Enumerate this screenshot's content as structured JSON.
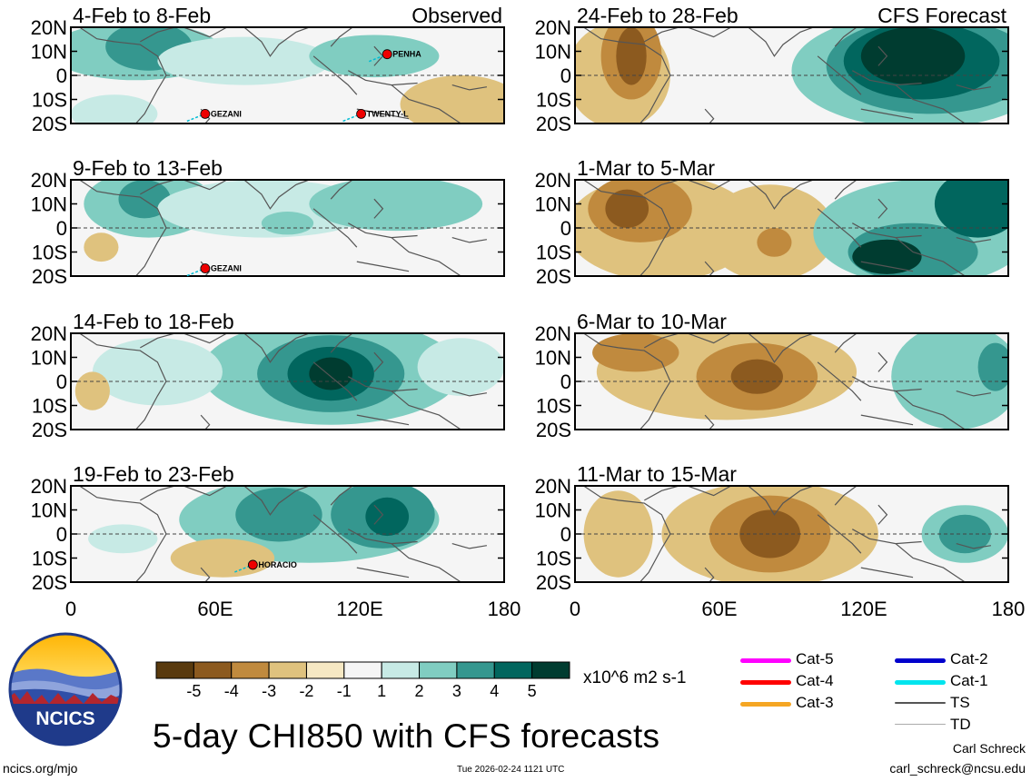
{
  "chart_data": {
    "type": "heatmap",
    "title": "5-day CHI850 with CFS forecasts",
    "units": "x10^6 m2 s-1",
    "variable": "CHI850",
    "x_axis": {
      "range": [
        0,
        180
      ],
      "ticks": [
        "0",
        "60E",
        "120E",
        "180"
      ]
    },
    "y_axis": {
      "range": [
        -20,
        20
      ],
      "ticks": [
        "20N",
        "10N",
        "0",
        "10S",
        "20S"
      ]
    },
    "colorbar": {
      "ticks": [
        "-5",
        "-4",
        "-3",
        "-2",
        "-1",
        "1",
        "2",
        "3",
        "4",
        "5"
      ],
      "colors": [
        "#593a0e",
        "#8c5a1f",
        "#c08a3e",
        "#dfc27e",
        "#f6e8c3",
        "#f5f5f5",
        "#c7eae5",
        "#80cdc1",
        "#35978f",
        "#01665e",
        "#003c30"
      ]
    },
    "panels": [
      {
        "id": "p1",
        "period": "4-Feb to 8-Feb",
        "source": "Observed",
        "storms": [
          "PENHA",
          "GEZANI",
          "TWENTY-L"
        ]
      },
      {
        "id": "p2",
        "period": "9-Feb to 13-Feb",
        "source": "",
        "storms": [
          "GEZANI"
        ]
      },
      {
        "id": "p3",
        "period": "14-Feb to 18-Feb",
        "source": "",
        "storms": []
      },
      {
        "id": "p4",
        "period": "19-Feb to 23-Feb",
        "source": "",
        "storms": [
          "HORACIO"
        ]
      },
      {
        "id": "p5",
        "period": "24-Feb to 28-Feb",
        "source": "CFS Forecast",
        "storms": []
      },
      {
        "id": "p6",
        "period": "1-Mar to 5-Mar",
        "source": "",
        "storms": []
      },
      {
        "id": "p7",
        "period": "6-Mar to 10-Mar",
        "source": "",
        "storms": []
      },
      {
        "id": "p8",
        "period": "11-Mar to 15-Mar",
        "source": "",
        "storms": []
      }
    ],
    "legend": [
      {
        "label": "Cat-5",
        "color": "#ff00ff"
      },
      {
        "label": "Cat-4",
        "color": "#ff0000"
      },
      {
        "label": "Cat-3",
        "color": "#f5a623"
      },
      {
        "label": "Cat-2",
        "color": "#0000cc"
      },
      {
        "label": "Cat-1",
        "color": "#00e5ee"
      },
      {
        "label": "TS",
        "color": "#555555"
      },
      {
        "label": "TD",
        "color": "#aaaaaa"
      }
    ]
  },
  "logo": {
    "text": "NCICS"
  },
  "footer": {
    "url": "ncics.org/mjo",
    "timestamp": "Tue 2026-02-24 1121 UTC",
    "author": "Carl Schreck",
    "email": "carl_schreck@ncsu.edu"
  }
}
